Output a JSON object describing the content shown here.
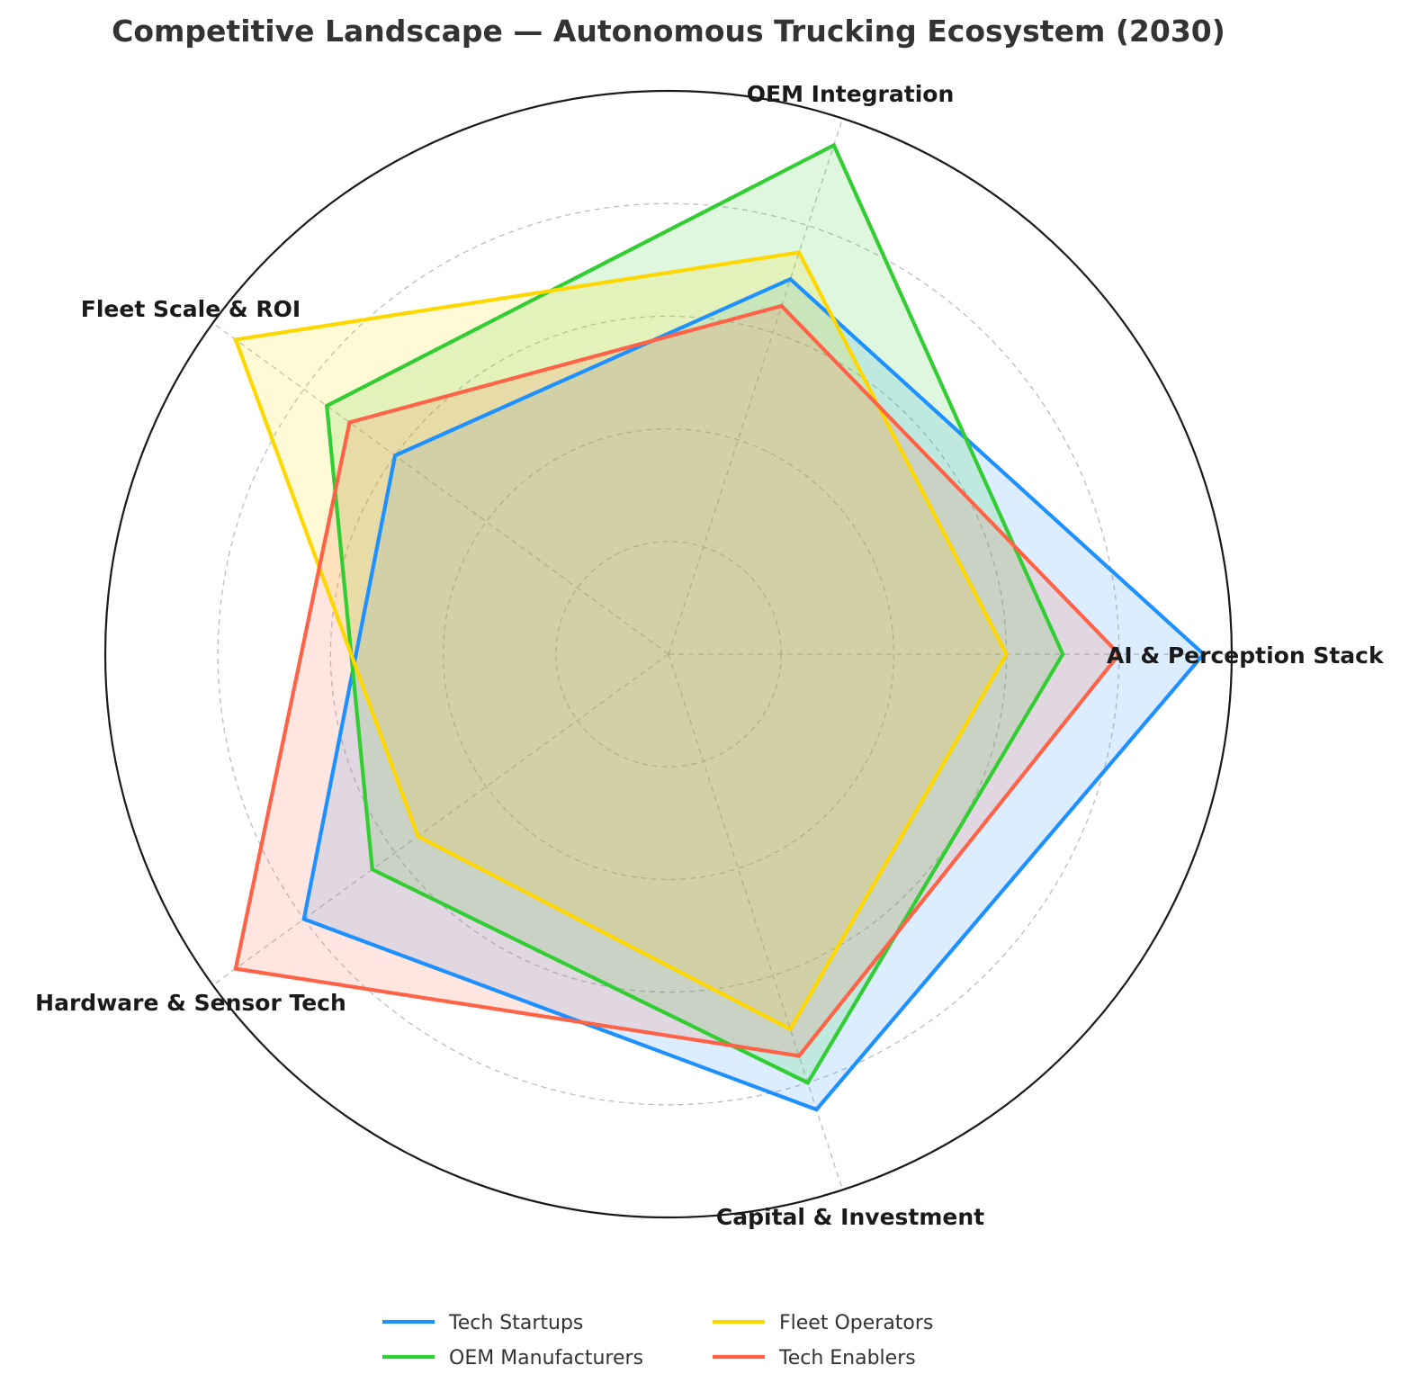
{
  "chart_data": {
    "type": "radar",
    "title": "Competitive Landscape — Autonomous Trucking Ecosystem (2030)",
    "axes": [
      "AI & Perception Stack",
      "OEM Integration",
      "Fleet Scale & ROI",
      "Hardware & Sensor Tech",
      "Capital & Investment"
    ],
    "rmax": 100,
    "grid_rings": [
      20,
      40,
      60,
      80,
      100
    ],
    "grid": true,
    "legend_position": "bottom-center",
    "series": [
      {
        "name": "Tech Startups",
        "color": "#1E90FF",
        "values": [
          95,
          70,
          60,
          80,
          85
        ]
      },
      {
        "name": "OEM Manufacturers",
        "color": "#32CD32",
        "values": [
          70,
          95,
          75,
          65,
          80
        ]
      },
      {
        "name": "Fleet Operators",
        "color": "#FFD700",
        "values": [
          60,
          75,
          95,
          55,
          70
        ]
      },
      {
        "name": "Tech Enablers",
        "color": "#FF6347",
        "values": [
          80,
          65,
          70,
          95,
          75
        ]
      }
    ]
  }
}
